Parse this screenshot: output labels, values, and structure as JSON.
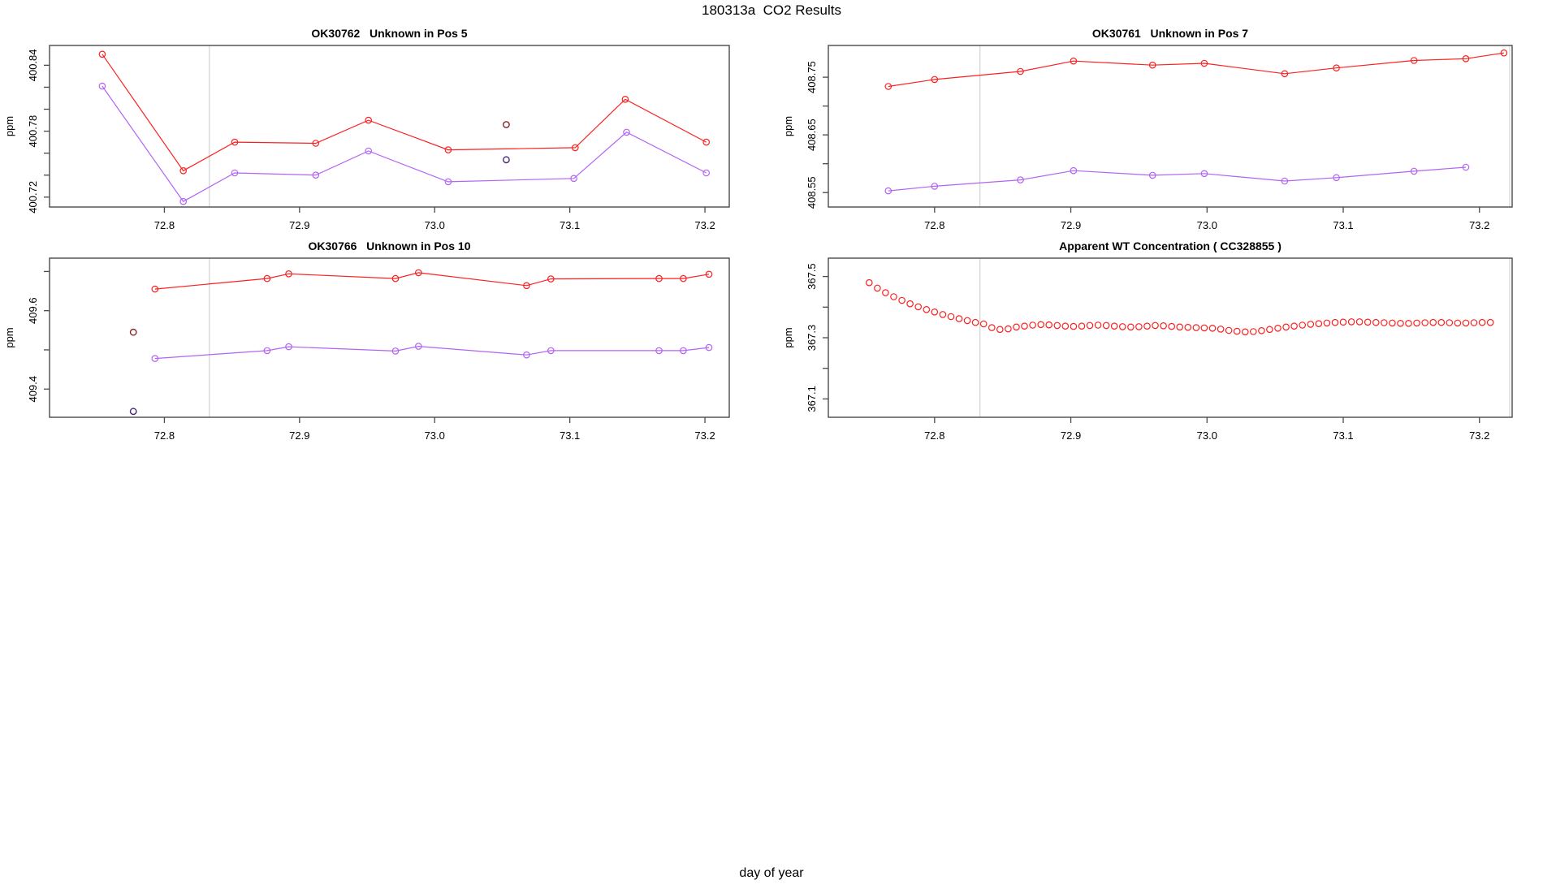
{
  "page": {
    "title": "180313a  CO2 Results",
    "xlabel": "day of year"
  },
  "palette": {
    "series_red": "#fb2020",
    "series_purple": "#b263f5",
    "flagged_dark_red": "#8b2323",
    "flagged_dark_purple": "#472678",
    "reference_line_gray": "#d2d2d2",
    "axis_color": "#4a4a4a",
    "text_color": "#000000"
  },
  "chart_data": [
    {
      "type": "line",
      "title": "OK30762   Unknown in Pos 5",
      "ylabel": "ppm",
      "xlim": [
        72.715,
        73.218
      ],
      "ylim": [
        400.711,
        400.858
      ],
      "grid": false,
      "xticks": [
        72.8,
        72.9,
        73.0,
        73.1,
        73.2
      ],
      "xtick_labels": [
        "72.8",
        "72.9",
        "73.0",
        "73.1",
        "73.2"
      ],
      "yticks": [
        400.72,
        400.74,
        400.76,
        400.78,
        400.8,
        400.82,
        400.84
      ],
      "ytick_labels": [
        "400.72",
        "",
        "",
        "400.78",
        "",
        "",
        "400.84"
      ],
      "vlines": [
        72.8333,
        73.2222
      ],
      "series": [
        {
          "name": "red-trace",
          "color": "#fb2020",
          "marker": "circle-open",
          "x": [
            72.754,
            72.814,
            72.852,
            72.912,
            72.951,
            73.01,
            73.104,
            73.141,
            73.201
          ],
          "y": [
            400.85,
            400.744,
            400.77,
            400.769,
            400.79,
            400.763,
            400.765,
            400.809,
            400.77
          ]
        },
        {
          "name": "purple-trace",
          "color": "#b263f5",
          "marker": "circle-open",
          "x": [
            72.754,
            72.814,
            72.852,
            72.912,
            72.951,
            73.01,
            73.103,
            73.142,
            73.201
          ],
          "y": [
            400.821,
            400.716,
            400.742,
            400.74,
            400.762,
            400.734,
            400.737,
            400.779,
            400.742
          ]
        }
      ],
      "flagged_points": [
        {
          "name": "flagged-red",
          "color": "#8b2323",
          "x": 73.053,
          "y": 400.786
        },
        {
          "name": "flagged-purple",
          "color": "#472678",
          "x": 73.053,
          "y": 400.754
        }
      ]
    },
    {
      "type": "line",
      "title": "OK30761   Unknown in Pos 7",
      "ylabel": "ppm",
      "xlim": [
        72.722,
        73.224
      ],
      "ylim": [
        408.525,
        408.805
      ],
      "grid": false,
      "xticks": [
        72.8,
        72.9,
        73.0,
        73.1,
        73.2
      ],
      "xtick_labels": [
        "72.8",
        "72.9",
        "73.0",
        "73.1",
        "73.2"
      ],
      "yticks": [
        408.55,
        408.6,
        408.65,
        408.7,
        408.75
      ],
      "ytick_labels": [
        "408.55",
        "",
        "408.65",
        "",
        "408.75"
      ],
      "vlines": [
        72.8333,
        73.2222
      ],
      "series": [
        {
          "name": "red-trace",
          "color": "#fb2020",
          "marker": "circle-open",
          "x": [
            72.766,
            72.8,
            72.863,
            72.902,
            72.96,
            72.998,
            73.057,
            73.095,
            73.152,
            73.19,
            73.218
          ],
          "y": [
            408.734,
            408.746,
            408.76,
            408.778,
            408.771,
            408.774,
            408.756,
            408.766,
            408.779,
            408.782,
            408.792
          ]
        },
        {
          "name": "purple-trace",
          "color": "#b263f5",
          "marker": "circle-open",
          "x": [
            72.766,
            72.8,
            72.863,
            72.902,
            72.96,
            72.998,
            73.057,
            73.095,
            73.152,
            73.19
          ],
          "y": [
            408.553,
            408.561,
            408.572,
            408.588,
            408.58,
            408.583,
            408.57,
            408.576,
            408.587,
            408.594
          ]
        }
      ],
      "flagged_points": []
    },
    {
      "type": "line",
      "title": "OK30766   Unknown in Pos 10",
      "ylabel": "ppm",
      "xlim": [
        72.715,
        73.218
      ],
      "ylim": [
        409.328,
        409.734
      ],
      "grid": false,
      "xticks": [
        72.8,
        72.9,
        73.0,
        73.1,
        73.2
      ],
      "xtick_labels": [
        "72.8",
        "72.9",
        "73.0",
        "73.1",
        "73.2"
      ],
      "yticks": [
        409.4,
        409.5,
        409.6,
        409.7
      ],
      "ytick_labels": [
        "409.4",
        "",
        "409.6",
        ""
      ],
      "vlines": [
        72.8333,
        73.2222
      ],
      "series": [
        {
          "name": "red-trace",
          "color": "#fb2020",
          "marker": "circle-open",
          "x": [
            72.793,
            72.876,
            72.892,
            72.971,
            72.988,
            73.068,
            73.086,
            73.166,
            73.184,
            73.203
          ],
          "y": [
            409.655,
            409.682,
            409.694,
            409.682,
            409.697,
            409.664,
            409.681,
            409.682,
            409.682,
            409.693
          ]
        },
        {
          "name": "purple-trace",
          "color": "#b263f5",
          "marker": "circle-open",
          "x": [
            72.793,
            72.876,
            72.892,
            72.971,
            72.988,
            73.068,
            73.086,
            73.166,
            73.184,
            73.203
          ],
          "y": [
            409.478,
            409.498,
            409.508,
            409.497,
            409.509,
            409.487,
            409.498,
            409.498,
            409.498,
            409.506
          ]
        }
      ],
      "flagged_points": [
        {
          "name": "flagged-red",
          "color": "#8b2323",
          "x": 72.777,
          "y": 409.545
        },
        {
          "name": "flagged-purple",
          "color": "#472678",
          "x": 72.777,
          "y": 409.343
        }
      ]
    },
    {
      "type": "scatter",
      "title": "Apparent WT Concentration ( CC328855 )",
      "ylabel": "ppm",
      "xlim": [
        72.722,
        73.224
      ],
      "ylim": [
        367.04,
        367.56
      ],
      "grid": false,
      "xticks": [
        72.8,
        72.9,
        73.0,
        73.1,
        73.2
      ],
      "xtick_labels": [
        "72.8",
        "72.9",
        "73.0",
        "73.1",
        "73.2"
      ],
      "yticks": [
        367.1,
        367.2,
        367.3,
        367.4,
        367.5
      ],
      "ytick_labels": [
        "367.1",
        "",
        "367.3",
        "",
        "367.5"
      ],
      "vlines": [
        72.8333,
        73.2222
      ],
      "series": [
        {
          "name": "wt-concentration",
          "color": "#fb2020",
          "marker": "circle-open",
          "line": false,
          "x": [
            72.752,
            72.758,
            72.764,
            72.77,
            72.776,
            72.782,
            72.788,
            72.794,
            72.8,
            72.806,
            72.812,
            72.818,
            72.824,
            72.83,
            72.836,
            72.842,
            72.848,
            72.854,
            72.86,
            72.866,
            72.872,
            72.878,
            72.884,
            72.89,
            72.896,
            72.902,
            72.908,
            72.914,
            72.92,
            72.926,
            72.932,
            72.938,
            72.944,
            72.95,
            72.956,
            72.962,
            72.968,
            72.974,
            72.98,
            72.986,
            72.992,
            72.998,
            73.004,
            73.01,
            73.016,
            73.022,
            73.028,
            73.034,
            73.04,
            73.046,
            73.052,
            73.058,
            73.064,
            73.07,
            73.076,
            73.082,
            73.088,
            73.094,
            73.1,
            73.106,
            73.112,
            73.118,
            73.124,
            73.13,
            73.136,
            73.142,
            73.148,
            73.154,
            73.16,
            73.166,
            73.172,
            73.178,
            73.184,
            73.19,
            73.196,
            73.202,
            73.208
          ],
          "y": [
            367.48,
            367.462,
            367.447,
            367.434,
            367.422,
            367.411,
            367.401,
            367.392,
            367.384,
            367.376,
            367.369,
            367.362,
            367.356,
            367.35,
            367.345,
            367.333,
            367.327,
            367.329,
            367.335,
            367.338,
            367.341,
            367.343,
            367.342,
            367.34,
            367.338,
            367.337,
            367.338,
            367.34,
            367.341,
            367.34,
            367.338,
            367.336,
            367.335,
            367.336,
            367.338,
            367.34,
            367.339,
            367.337,
            367.335,
            367.334,
            367.333,
            367.332,
            367.331,
            367.328,
            367.324,
            367.321,
            367.319,
            367.32,
            367.323,
            367.327,
            367.331,
            367.335,
            367.338,
            367.341,
            367.344,
            367.346,
            367.348,
            367.35,
            367.351,
            367.352,
            367.352,
            367.351,
            367.35,
            367.349,
            367.348,
            367.347,
            367.347,
            367.348,
            367.349,
            367.35,
            367.35,
            367.349,
            367.348,
            367.348,
            367.349,
            367.35,
            367.35
          ]
        }
      ],
      "flagged_points": []
    }
  ]
}
